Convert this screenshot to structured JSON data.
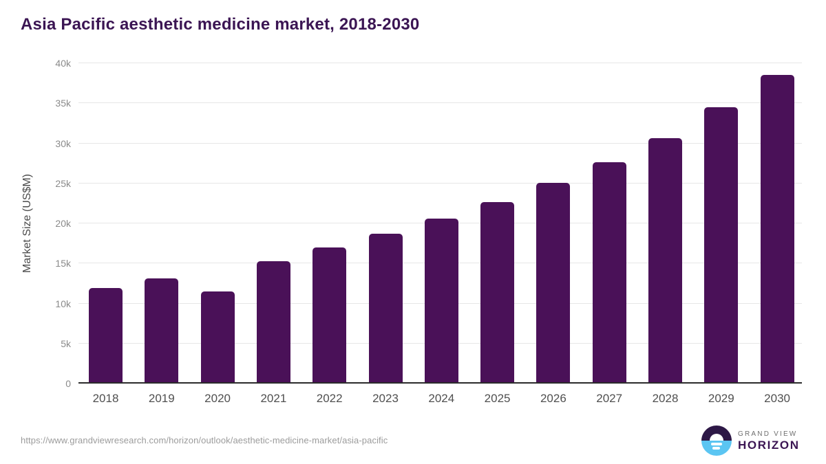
{
  "title": "Asia Pacific aesthetic medicine market, 2018-2030",
  "chart_data": {
    "type": "bar",
    "title": "Asia Pacific aesthetic medicine market, 2018-2030",
    "categories": [
      "2018",
      "2019",
      "2020",
      "2021",
      "2022",
      "2023",
      "2024",
      "2025",
      "2026",
      "2027",
      "2028",
      "2029",
      "2030"
    ],
    "values": [
      11800,
      13000,
      11300,
      15100,
      16800,
      18500,
      20400,
      22500,
      24900,
      27500,
      30500,
      34300,
      38400
    ],
    "xlabel": "",
    "ylabel": "Market Size (US$M)",
    "ylim": [
      0,
      40000
    ],
    "ytick_labels": [
      "0",
      "5k",
      "10k",
      "15k",
      "20k",
      "25k",
      "30k",
      "35k",
      "40k"
    ],
    "grid": true,
    "legend": false,
    "bar_color": "#4a1158"
  },
  "footer": {
    "source_url": "https://www.grandviewresearch.com/horizon/outlook/aesthetic-medicine-market/asia-pacific",
    "logo": {
      "top_text": "GRAND VIEW",
      "bottom_text": "HORIZON"
    }
  },
  "colors": {
    "bar": "#4a1158",
    "title_text": "#3b1553",
    "gridline": "#e6e6e6",
    "axis_line": "#2b2b2b",
    "y_tick_text": "#8a8a8a",
    "x_tick_text": "#4f4f4f",
    "url_text": "#9b9b9b",
    "logo_dark": "#2d1846",
    "logo_blue": "#5bc5f2"
  }
}
